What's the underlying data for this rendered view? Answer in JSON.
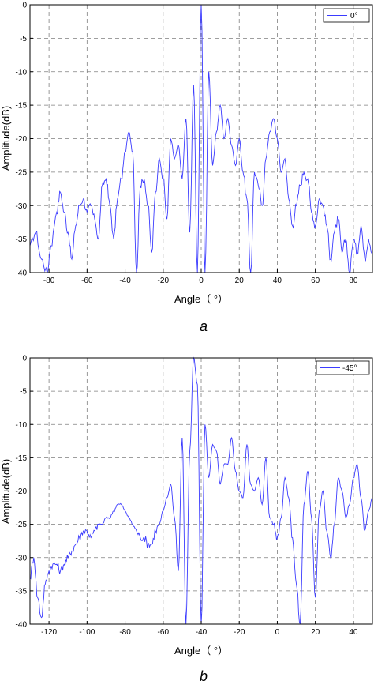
{
  "chart_data": [
    {
      "type": "line",
      "panel_label": "a",
      "xlabel": "Angle（ °）",
      "ylabel": "Amplitude(dB)",
      "xlim": [
        -90,
        90
      ],
      "ylim": [
        -40,
        0
      ],
      "xticks": [
        -80,
        -60,
        -40,
        -20,
        0,
        20,
        40,
        60,
        80
      ],
      "yticks": [
        0,
        -5,
        -10,
        -15,
        -20,
        -25,
        -30,
        -35,
        -40
      ],
      "grid": true,
      "legend": "top-right",
      "line_color": "#3b3bff",
      "series": [
        {
          "name": "0°",
          "x": [
            -90,
            -87,
            -84,
            -81,
            -79,
            -76,
            -74,
            -72,
            -70,
            -68,
            -66,
            -64,
            -62,
            -60,
            -58,
            -56,
            -54,
            -52,
            -50,
            -48,
            -46,
            -44,
            -42,
            -40,
            -38,
            -36,
            -34,
            -32,
            -30,
            -28,
            -26,
            -24,
            -22,
            -20,
            -18,
            -16,
            -14,
            -12,
            -10,
            -8,
            -6,
            -4,
            -2,
            0,
            2,
            4,
            6,
            8,
            10,
            12,
            14,
            16,
            18,
            20,
            22,
            24,
            26,
            28,
            30,
            32,
            34,
            36,
            38,
            40,
            42,
            44,
            46,
            48,
            50,
            52,
            54,
            56,
            58,
            60,
            62,
            64,
            66,
            68,
            70,
            72,
            74,
            76,
            78,
            80,
            82,
            84,
            86,
            88,
            90
          ],
          "y": [
            -36,
            -34,
            -38,
            -40,
            -36,
            -31,
            -28,
            -31,
            -34,
            -38,
            -33,
            -30,
            -29,
            -31,
            -30,
            -32,
            -35,
            -27,
            -26,
            -30,
            -35,
            -29,
            -26,
            -22,
            -19,
            -22,
            -40,
            -27,
            -26,
            -30,
            -37,
            -28,
            -23,
            -26,
            -32,
            -20,
            -23,
            -21,
            -26,
            -17,
            -34,
            -12,
            -40,
            0,
            -40,
            -10,
            -24,
            -19,
            -15,
            -20,
            -17,
            -21,
            -24,
            -20,
            -25,
            -29,
            -40,
            -25,
            -27,
            -30,
            -23,
            -19,
            -17,
            -20,
            -25,
            -23,
            -29,
            -33,
            -30,
            -27,
            -25,
            -26,
            -31,
            -33,
            -29,
            -30,
            -33,
            -38,
            -34,
            -32,
            -37,
            -35,
            -40,
            -35,
            -37,
            -33,
            -38,
            -35,
            -37
          ]
        }
      ]
    },
    {
      "type": "line",
      "panel_label": "b",
      "xlabel": "Angle（ °）",
      "ylabel": "Amplitude(dB)",
      "xlim": [
        -130,
        50
      ],
      "ylim": [
        -40,
        0
      ],
      "xticks": [
        -120,
        -100,
        -80,
        -60,
        -40,
        -20,
        0,
        20,
        40
      ],
      "yticks": [
        0,
        -5,
        -10,
        -15,
        -20,
        -25,
        -30,
        -35,
        -40
      ],
      "grid": true,
      "legend": "top-right",
      "line_color": "#3b3bff",
      "series": [
        {
          "name": "-45°",
          "x": [
            -130,
            -128,
            -126,
            -124,
            -122,
            -120,
            -118,
            -116,
            -114,
            -112,
            -110,
            -108,
            -106,
            -104,
            -102,
            -100,
            -98,
            -96,
            -94,
            -92,
            -90,
            -88,
            -86,
            -84,
            -82,
            -80,
            -78,
            -76,
            -74,
            -72,
            -70,
            -68,
            -66,
            -64,
            -62,
            -60,
            -58,
            -56,
            -54,
            -52,
            -50,
            -48,
            -46,
            -44,
            -42,
            -40,
            -38,
            -36,
            -34,
            -32,
            -30,
            -28,
            -26,
            -24,
            -22,
            -20,
            -18,
            -16,
            -14,
            -12,
            -10,
            -8,
            -6,
            -4,
            -2,
            0,
            2,
            4,
            6,
            8,
            10,
            12,
            14,
            16,
            18,
            20,
            22,
            24,
            26,
            28,
            30,
            32,
            34,
            36,
            38,
            40,
            42,
            44,
            46,
            48,
            50
          ],
          "y": [
            -33,
            -30,
            -36,
            -39,
            -34,
            -32,
            -31,
            -31,
            -32,
            -31,
            -30,
            -29,
            -28,
            -27,
            -26,
            -26,
            -27,
            -26,
            -25,
            -25,
            -24,
            -24,
            -23,
            -22,
            -22,
            -23,
            -24,
            -25,
            -26,
            -27,
            -27,
            -28,
            -28,
            -26,
            -25,
            -23,
            -21,
            -19,
            -24,
            -32,
            -12,
            -40,
            -14,
            0,
            -4,
            -40,
            -10,
            -18,
            -13,
            -14,
            -19,
            -16,
            -16,
            -12,
            -17,
            -20,
            -21,
            -13,
            -19,
            -20,
            -18,
            -22,
            -15,
            -24,
            -25,
            -27,
            -24,
            -18,
            -21,
            -27,
            -34,
            -40,
            -22,
            -17,
            -24,
            -36,
            -23,
            -20,
            -26,
            -30,
            -25,
            -18,
            -20,
            -24,
            -22,
            -18,
            -16,
            -21,
            -26,
            -23,
            -21
          ]
        }
      ]
    }
  ]
}
